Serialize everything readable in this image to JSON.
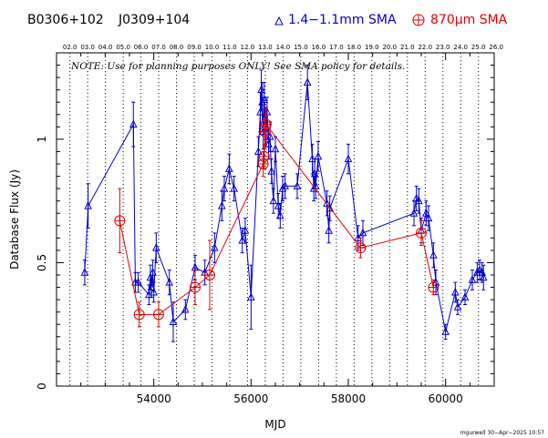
{
  "header": {
    "source": "B0306+102",
    "calibrator": "J0309+104",
    "legend_blue": "1.4−1.1mm SMA",
    "legend_red": "870μm SMA"
  },
  "note": "NOTE: Use for planning purposes ONLY!  See SMA policy for details.",
  "footer": "mgurwell 30−Apr−2025 10:57",
  "colors": {
    "blue": "#0000cc",
    "red": "#dd0000",
    "axis": "#000000"
  },
  "chart_data": {
    "type": "scatter",
    "xlabel": "MJD",
    "ylabel": "Database Flux (Jy)",
    "xlim": [
      52000,
      61000
    ],
    "ylim": [
      0,
      1.35
    ],
    "x_ticks": [
      54000,
      56000,
      58000,
      60000
    ],
    "x_tick_labels": [
      "54000",
      "56000",
      "58000",
      "60000"
    ],
    "y_ticks": [
      0,
      0.5,
      1
    ],
    "y_tick_labels": [
      "0",
      "0.5",
      "1"
    ],
    "top_axis_labels": [
      "02.0",
      "03.0",
      "04.0",
      "05.0",
      "06.0",
      "07.0",
      "08.0",
      "09.0",
      "10.0",
      "11.0",
      "12.0",
      "13.0",
      "14.0",
      "15.0",
      "16.0",
      "17.0",
      "18.0",
      "19.0",
      "20.0",
      "21.0",
      "22.0",
      "23.0",
      "24.0",
      "25.0",
      "26.0"
    ],
    "top_axis_mjd": [
      52275,
      52640,
      53005,
      53371,
      53736,
      54101,
      54466,
      54832,
      55197,
      55562,
      55927,
      56293,
      56658,
      57023,
      57388,
      57754,
      58119,
      58484,
      58849,
      59215,
      59580,
      59945,
      60310,
      60676,
      61041
    ],
    "series": [
      {
        "name": "1.4−1.1mm SMA",
        "color": "#0000cc",
        "marker": "triangle",
        "points": [
          [
            52580,
            0.46,
            0.05
          ],
          [
            52650,
            0.73,
            0.09
          ],
          [
            53580,
            1.06,
            0.09
          ],
          [
            53620,
            0.42,
            0.04
          ],
          [
            53680,
            0.42,
            0.04
          ],
          [
            53900,
            0.37,
            0.04
          ],
          [
            53930,
            0.44,
            0.05
          ],
          [
            53950,
            0.4,
            0.04
          ],
          [
            53980,
            0.46,
            0.05
          ],
          [
            54000,
            0.38,
            0.04
          ],
          [
            54050,
            0.56,
            0.06
          ],
          [
            54320,
            0.42,
            0.05
          ],
          [
            54400,
            0.26,
            0.08
          ],
          [
            54650,
            0.31,
            0.04
          ],
          [
            54850,
            0.48,
            0.05
          ],
          [
            55050,
            0.46,
            0.05
          ],
          [
            55250,
            0.56,
            0.06
          ],
          [
            55400,
            0.73,
            0.06
          ],
          [
            55450,
            0.8,
            0.05
          ],
          [
            55550,
            0.88,
            0.06
          ],
          [
            55650,
            0.8,
            0.05
          ],
          [
            55820,
            0.59,
            0.05
          ],
          [
            55880,
            0.63,
            0.05
          ],
          [
            56000,
            0.36,
            0.13
          ],
          [
            56150,
            0.95,
            0.06
          ],
          [
            56190,
            1.11,
            0.08
          ],
          [
            56210,
            1.2,
            0.08
          ],
          [
            56230,
            1.15,
            0.08
          ],
          [
            56250,
            1.03,
            0.07
          ],
          [
            56270,
            1.16,
            0.07
          ],
          [
            56290,
            1.06,
            0.06
          ],
          [
            56310,
            1.03,
            0.06
          ],
          [
            56330,
            1.11,
            0.06
          ],
          [
            56360,
            0.98,
            0.06
          ],
          [
            56390,
            1.01,
            0.06
          ],
          [
            56420,
            0.87,
            0.05
          ],
          [
            56460,
            0.75,
            0.05
          ],
          [
            56500,
            0.96,
            0.05
          ],
          [
            56560,
            0.73,
            0.05
          ],
          [
            56600,
            0.69,
            0.05
          ],
          [
            56650,
            0.8,
            0.05
          ],
          [
            56700,
            0.81,
            0.05
          ],
          [
            56950,
            0.81,
            0.05
          ],
          [
            57160,
            1.23,
            0.07
          ],
          [
            57260,
            0.92,
            0.06
          ],
          [
            57290,
            0.8,
            0.05
          ],
          [
            57310,
            0.86,
            0.06
          ],
          [
            57330,
            0.81,
            0.05
          ],
          [
            57380,
            0.93,
            0.06
          ],
          [
            57560,
            0.74,
            0.05
          ],
          [
            57600,
            0.63,
            0.05
          ],
          [
            57620,
            0.72,
            0.05
          ],
          [
            58000,
            0.92,
            0.06
          ],
          [
            58200,
            0.6,
            0.05
          ],
          [
            58300,
            0.62,
            0.05
          ],
          [
            59350,
            0.7,
            0.05
          ],
          [
            59400,
            0.76,
            0.05
          ],
          [
            59450,
            0.75,
            0.05
          ],
          [
            59500,
            0.63,
            0.05
          ],
          [
            59600,
            0.7,
            0.05
          ],
          [
            59650,
            0.68,
            0.05
          ],
          [
            59750,
            0.53,
            0.05
          ],
          [
            59800,
            0.42,
            0.05
          ],
          [
            60000,
            0.22,
            0.03
          ],
          [
            60200,
            0.38,
            0.04
          ],
          [
            60250,
            0.32,
            0.03
          ],
          [
            60400,
            0.36,
            0.03
          ],
          [
            60550,
            0.43,
            0.04
          ],
          [
            60650,
            0.46,
            0.04
          ],
          [
            60700,
            0.47,
            0.04
          ],
          [
            60750,
            0.46,
            0.04
          ],
          [
            60780,
            0.44,
            0.05
          ]
        ]
      },
      {
        "name": "870μm SMA",
        "color": "#dd0000",
        "marker": "circle-plus",
        "points": [
          [
            53300,
            0.67,
            0.13
          ],
          [
            53700,
            0.29,
            0.05
          ],
          [
            54100,
            0.29,
            0.05
          ],
          [
            54850,
            0.4,
            0.07
          ],
          [
            55150,
            0.45,
            0.14
          ],
          [
            56250,
            0.9,
            0.05
          ],
          [
            56270,
            0.93,
            0.05
          ],
          [
            56290,
            1.03,
            0.07
          ],
          [
            56310,
            1.06,
            0.07
          ],
          [
            58250,
            0.56,
            0.04
          ],
          [
            59500,
            0.62,
            0.05
          ],
          [
            59750,
            0.4,
            0.03
          ]
        ]
      }
    ]
  }
}
